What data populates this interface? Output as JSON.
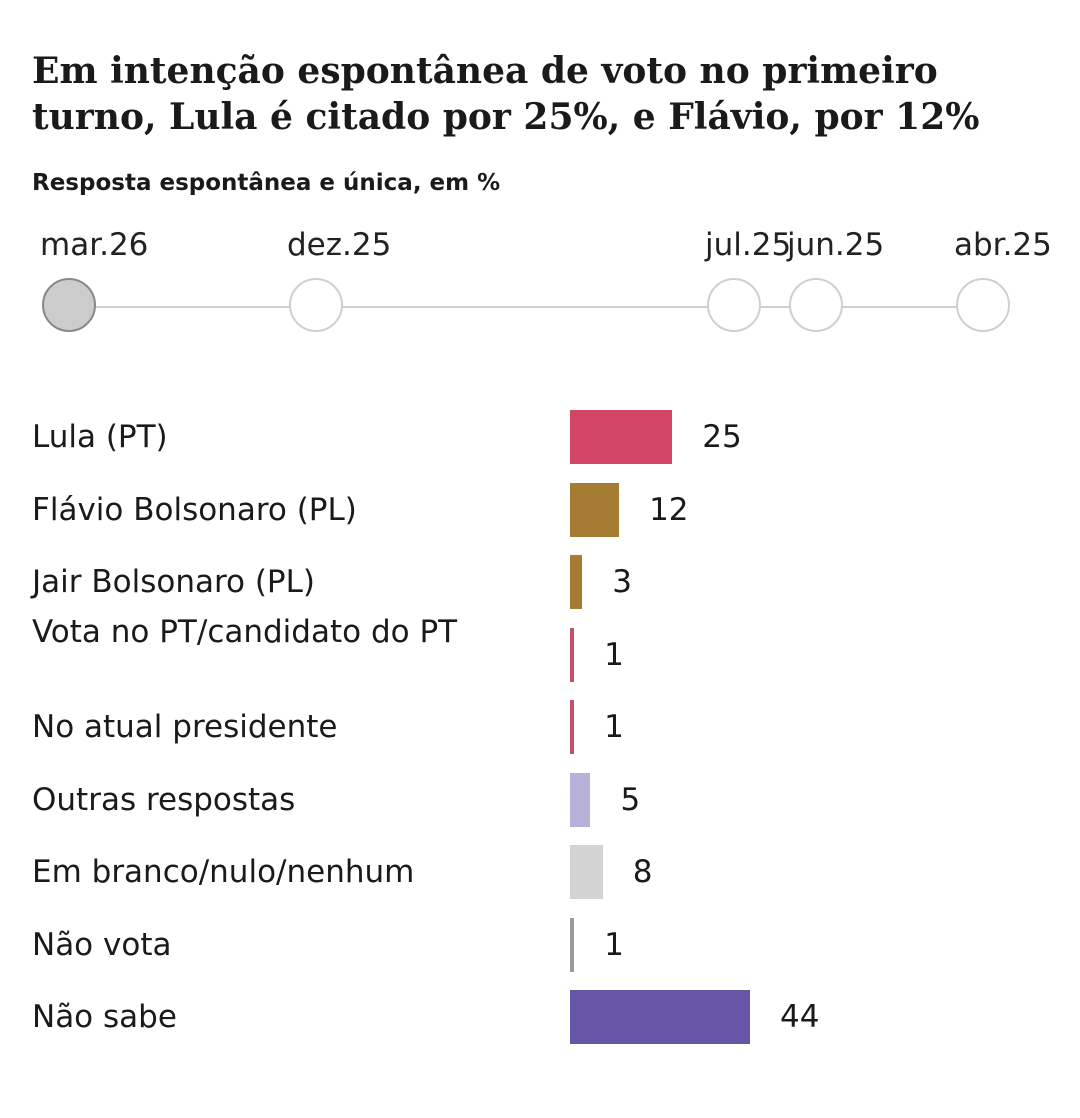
{
  "title": "Em intenção espontânea de voto no primeiro turno, Lula é citado por 25%, e Flávio, por 12%",
  "subtitle": "Resposta espontânea e única, em %",
  "timeline": {
    "labels": [
      "mar.26",
      "dez.25",
      "jul.25",
      "jun.25",
      "abr.25"
    ],
    "selected": "mar.26"
  },
  "colors": {
    "lula": "#d24565",
    "bolsonaro": "#a67c33",
    "pt": "#c3516b",
    "outras": "#b7b0d8",
    "branco": "#d3d3d3",
    "naovota": "#9a9a9a",
    "naosabe": "#6456a5"
  },
  "chart_data": {
    "type": "bar",
    "orientation": "horizontal",
    "title": "Em intenção espontânea de voto no primeiro turno, Lula é citado por 25%, e Flávio, por 12%",
    "subtitle": "Resposta espontânea e única, em %",
    "categories": [
      "Lula (PT)",
      "Flávio Bolsonaro (PL)",
      "Jair Bolsonaro (PL)",
      "Vota no PT/candidato do PT",
      "No atual presidente",
      "Outras respostas",
      "Em branco/nulo/nenhum",
      "Não vota",
      "Não sabe"
    ],
    "values": [
      25,
      12,
      3,
      1,
      1,
      5,
      8,
      1,
      44
    ],
    "value_labels": [
      "25",
      "12",
      "3",
      "1",
      "1",
      "5",
      "8",
      "1",
      "44"
    ],
    "color_keys": [
      "lula",
      "bolsonaro",
      "bolsonaro",
      "pt",
      "pt",
      "outras",
      "branco",
      "naovota",
      "naosabe"
    ],
    "xlim": [
      0,
      50
    ],
    "xlabel": "",
    "ylabel": ""
  }
}
